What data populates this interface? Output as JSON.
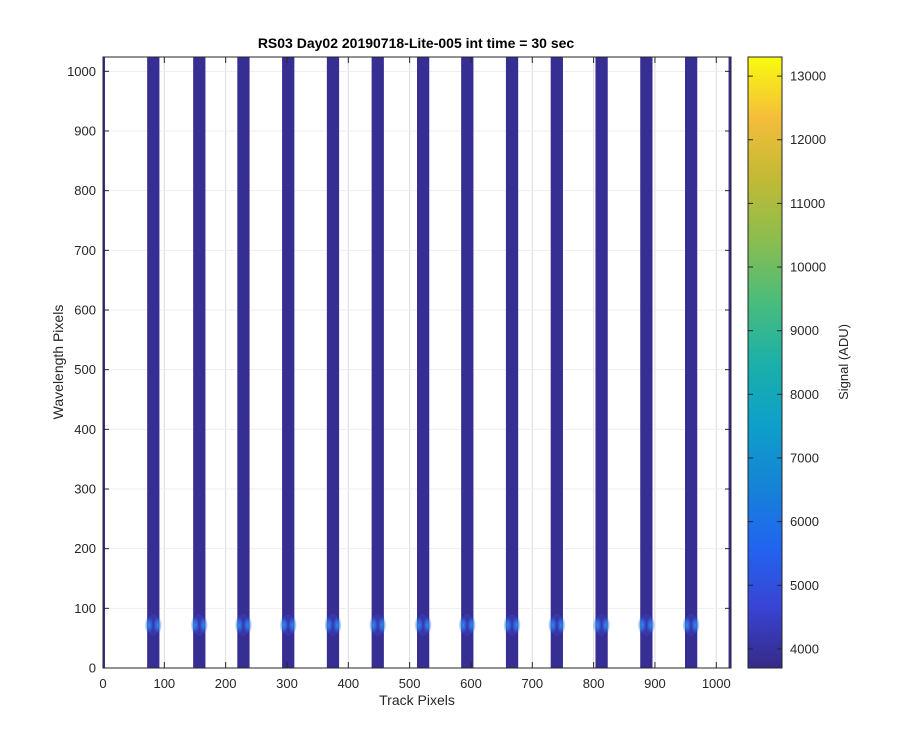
{
  "chart_data": {
    "type": "heatmap",
    "title": "RS03 Day02 20190718-Lite-005 int time = 30 sec",
    "xlabel": "Track Pixels",
    "ylabel": "Wavelength Pixels",
    "xlim": [
      0,
      1024
    ],
    "ylim": [
      0,
      1024
    ],
    "x_ticks": [
      0,
      100,
      200,
      300,
      400,
      500,
      600,
      700,
      800,
      900,
      1000
    ],
    "y_ticks": [
      0,
      100,
      200,
      300,
      400,
      500,
      600,
      700,
      800,
      900,
      1000
    ],
    "grid": true,
    "colormap": "parula",
    "colorbar": {
      "label": "Signal (ADU)",
      "range": [
        3700,
        13300
      ],
      "ticks": [
        4000,
        5000,
        6000,
        7000,
        8000,
        9000,
        10000,
        11000,
        12000,
        13000
      ]
    },
    "background_value": 3850,
    "tracks": [
      {
        "x_start": 0,
        "x_end": 2,
        "value": 3850
      },
      {
        "x_start": 72,
        "x_end": 92,
        "value": 3850
      },
      {
        "x_start": 147,
        "x_end": 167,
        "value": 3850
      },
      {
        "x_start": 219,
        "x_end": 239,
        "value": 3850
      },
      {
        "x_start": 292,
        "x_end": 312,
        "value": 3850
      },
      {
        "x_start": 365,
        "x_end": 385,
        "value": 3850
      },
      {
        "x_start": 438,
        "x_end": 458,
        "value": 3850
      },
      {
        "x_start": 512,
        "x_end": 532,
        "value": 3850
      },
      {
        "x_start": 584,
        "x_end": 604,
        "value": 3850
      },
      {
        "x_start": 657,
        "x_end": 677,
        "value": 3850
      },
      {
        "x_start": 730,
        "x_end": 750,
        "value": 3850
      },
      {
        "x_start": 803,
        "x_end": 823,
        "value": 3850
      },
      {
        "x_start": 876,
        "x_end": 896,
        "value": 3850
      },
      {
        "x_start": 949,
        "x_end": 969,
        "value": 3850
      },
      {
        "x_start": 1020,
        "x_end": 1024,
        "value": 3850
      }
    ],
    "spot_row": {
      "y": 72,
      "value": 6800
    }
  }
}
